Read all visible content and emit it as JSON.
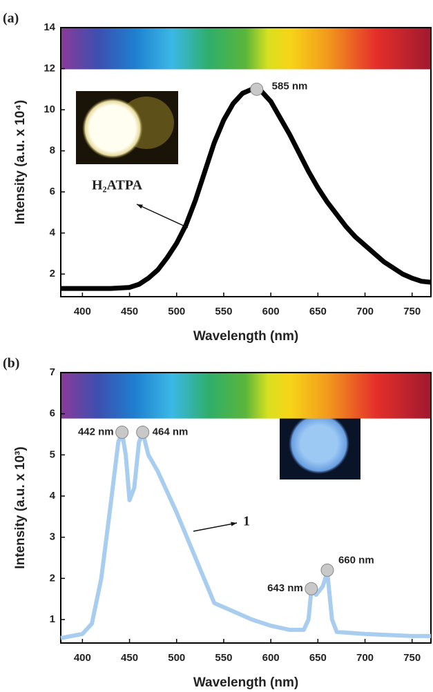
{
  "chart_data": [
    {
      "type": "line",
      "panel_label": "(a)",
      "xlabel": "Wavelength (nm)",
      "ylabel": "Intensity (a.u. x 10⁴)",
      "xlim": [
        377,
        770
      ],
      "ylim": [
        0.9,
        14
      ],
      "xticks": [
        400,
        450,
        500,
        550,
        600,
        650,
        700,
        750
      ],
      "yticks": [
        2,
        4,
        6,
        8,
        10,
        12,
        14
      ],
      "x": [
        377,
        400,
        430,
        450,
        460,
        470,
        480,
        490,
        500,
        510,
        520,
        530,
        540,
        550,
        560,
        570,
        580,
        585,
        590,
        600,
        610,
        620,
        630,
        640,
        650,
        660,
        670,
        680,
        690,
        700,
        710,
        720,
        730,
        740,
        750,
        760,
        770
      ],
      "series": [
        {
          "color": "#000000",
          "values": [
            1.3,
            1.3,
            1.3,
            1.35,
            1.5,
            1.8,
            2.2,
            2.8,
            3.5,
            4.4,
            5.6,
            7.0,
            8.4,
            9.5,
            10.3,
            10.8,
            11.0,
            11.0,
            10.9,
            10.4,
            9.6,
            8.8,
            7.9,
            7.0,
            6.2,
            5.5,
            4.9,
            4.3,
            3.8,
            3.4,
            3.0,
            2.6,
            2.3,
            2.0,
            1.8,
            1.65,
            1.6
          ]
        }
      ],
      "peaks": [
        {
          "x": 585,
          "y": 11.0,
          "label": "585 nm"
        }
      ],
      "annotation": "H₂ATPA"
    },
    {
      "type": "line",
      "panel_label": "(b)",
      "xlabel": "Wavelength (nm)",
      "ylabel": "Intensity (a.u. x 10³)",
      "xlim": [
        377,
        770
      ],
      "ylim": [
        0.43,
        7
      ],
      "xticks": [
        400,
        450,
        500,
        550,
        600,
        650,
        700,
        750
      ],
      "yticks": [
        1,
        2,
        3,
        4,
        5,
        6,
        7
      ],
      "x": [
        377,
        400,
        410,
        420,
        430,
        438,
        442,
        446,
        450,
        455,
        460,
        464,
        470,
        480,
        490,
        500,
        520,
        540,
        560,
        580,
        600,
        620,
        635,
        640,
        643,
        648,
        655,
        660,
        665,
        670,
        700,
        750,
        770
      ],
      "series": [
        {
          "color": "#a9cdef",
          "values": [
            0.55,
            0.65,
            0.9,
            2.0,
            3.8,
            5.3,
            5.55,
            5.0,
            3.9,
            4.2,
            5.3,
            5.55,
            5.0,
            4.6,
            4.1,
            3.6,
            2.5,
            1.4,
            1.2,
            1.0,
            0.85,
            0.75,
            0.75,
            1.0,
            1.7,
            1.6,
            1.8,
            2.15,
            1.0,
            0.7,
            0.65,
            0.6,
            0.6
          ]
        }
      ],
      "peaks": [
        {
          "x": 442,
          "y": 5.55,
          "label": "442 nm"
        },
        {
          "x": 464,
          "y": 5.55,
          "label": "464 nm"
        },
        {
          "x": 643,
          "y": 1.75,
          "label": "643 nm"
        },
        {
          "x": 660,
          "y": 2.2,
          "label": "660 nm"
        }
      ],
      "annotation": "1"
    }
  ]
}
